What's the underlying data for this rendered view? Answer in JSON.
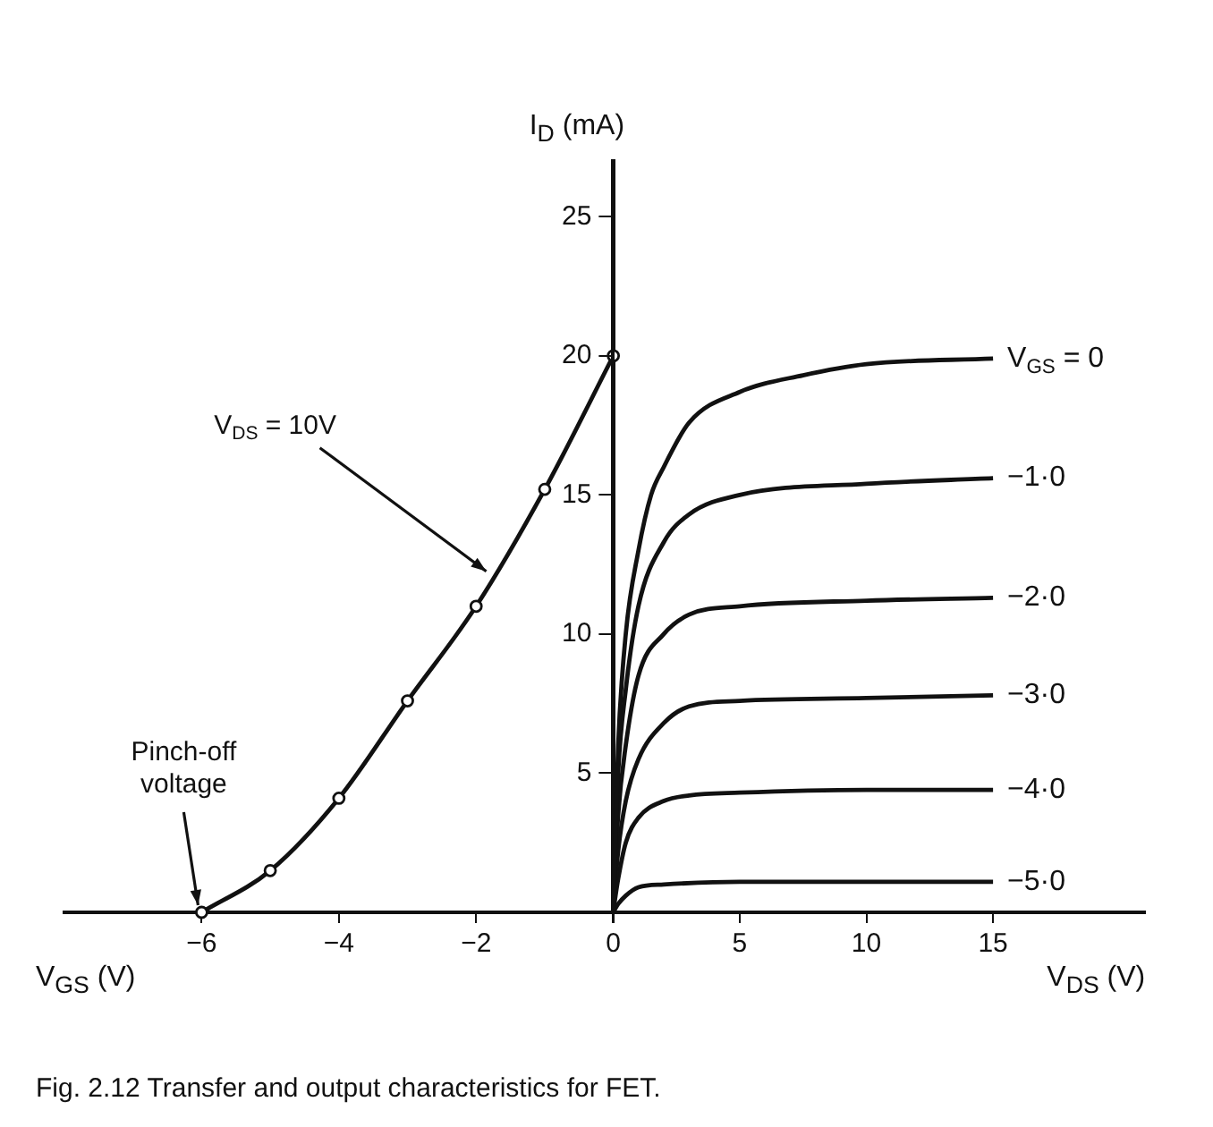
{
  "chart_data": [
    {
      "type": "line",
      "xlabel": "V$_{GS}$ (V)",
      "xlim": [
        -8,
        0
      ],
      "xticks": [
        -6,
        -4,
        -2,
        0
      ],
      "ylim": [
        0,
        27
      ],
      "tick_labels": "x",
      "marker": "circle",
      "grid": false,
      "legend": false,
      "series": [
        {
          "color": "#111111",
          "x": [
            -6,
            -5,
            -4,
            -3,
            -2,
            -1,
            0
          ],
          "values": [
            0,
            1.5,
            4.1,
            7.6,
            11,
            15.2,
            20
          ]
        }
      ],
      "annotations": [
        {
          "text": "V$_{DS}$ = 10V",
          "x": -1.8,
          "y": 12
        },
        {
          "text": "Pinch-off voltage",
          "x": -6,
          "y": 0
        },
        "Fig. 2.12  Transfer and output characteristics for FET."
      ]
    },
    {
      "type": "line",
      "xlabel": "V$_{DS}$ (V)",
      "ylabel": "I$_{D}$ (mA)",
      "xlim": [
        0,
        21
      ],
      "xticks": [
        {
          "value": 0,
          "label": null
        },
        5,
        10,
        15
      ],
      "ylim": [
        0,
        27
      ],
      "yticks": [
        5,
        10,
        15,
        20,
        25
      ],
      "grid": false,
      "legend": false,
      "series": [
        {
          "name": "V$_{GS}$ = 0",
          "color": "#111111",
          "x": [
            0,
            0.2,
            0.5,
            1,
            1.5,
            2,
            3,
            5,
            7.5,
            10,
            15
          ],
          "values": [
            0,
            6,
            10,
            13,
            15,
            16,
            17.6,
            18.7,
            19.3,
            19.7,
            19.9
          ]
        },
        {
          "name": "−1·0",
          "color": "#111111",
          "x": [
            0,
            0.2,
            0.5,
            1,
            2,
            3,
            5,
            10,
            15
          ],
          "values": [
            0,
            5,
            8,
            11,
            13.3,
            14.3,
            15,
            15.4,
            15.6
          ]
        },
        {
          "name": "−2·0",
          "color": "#111111",
          "x": [
            0,
            0.2,
            0.5,
            1,
            2,
            3,
            5,
            10,
            15
          ],
          "values": [
            0,
            3.5,
            6,
            8.5,
            10,
            10.7,
            11,
            11.2,
            11.3
          ]
        },
        {
          "name": "−3·0",
          "color": "#111111",
          "x": [
            0,
            0.2,
            0.5,
            1,
            2,
            3,
            5,
            10,
            15
          ],
          "values": [
            0,
            2.2,
            4,
            5.5,
            6.8,
            7.4,
            7.6,
            7.7,
            7.8
          ]
        },
        {
          "name": "−4·0",
          "color": "#111111",
          "x": [
            0,
            0.2,
            0.5,
            1,
            2,
            3,
            5,
            10,
            15
          ],
          "values": [
            0,
            1.2,
            2.5,
            3.4,
            4,
            4.2,
            4.3,
            4.4,
            4.4
          ]
        },
        {
          "name": "−5·0",
          "color": "#111111",
          "x": [
            0,
            0.2,
            0.5,
            1,
            2,
            5,
            10,
            15
          ],
          "values": [
            0,
            0.3,
            0.6,
            0.9,
            1,
            1.1,
            1.1,
            1.1
          ]
        }
      ]
    }
  ]
}
